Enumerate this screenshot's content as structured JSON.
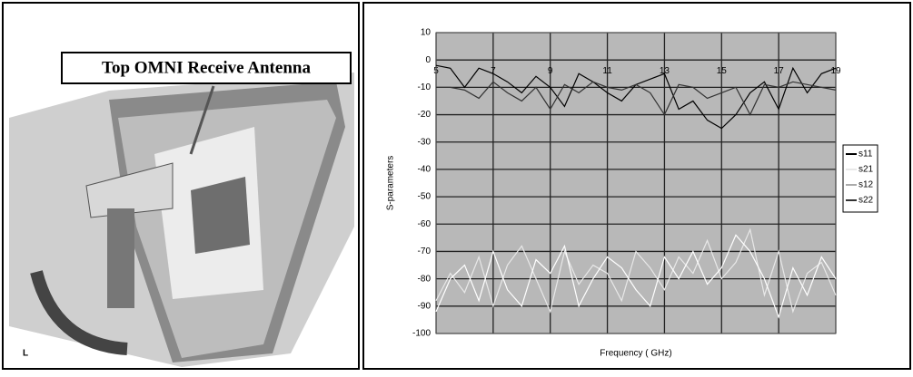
{
  "image_label": "Top OMNI Receive Antenna",
  "chart_data": {
    "type": "line",
    "ylabel": "S-parameters",
    "xlabel": "Frequency ( GHz)",
    "x": [
      5,
      5.5,
      6,
      6.5,
      7,
      7.5,
      8,
      8.5,
      9,
      9.5,
      10,
      10.5,
      11,
      11.5,
      12,
      12.5,
      13,
      13.5,
      14,
      14.5,
      15,
      15.5,
      16,
      16.5,
      17,
      17.5,
      18,
      18.5,
      19
    ],
    "xlim": [
      5,
      19
    ],
    "xticks": [
      5,
      7,
      9,
      11,
      13,
      15,
      17,
      19
    ],
    "ylim": [
      -100,
      10
    ],
    "yticks": [
      10,
      0,
      -10,
      -20,
      -30,
      -40,
      -50,
      -60,
      -70,
      -80,
      -90,
      -100
    ],
    "grid": true,
    "legend": "right",
    "series": [
      {
        "name": "s11",
        "color": "#000000",
        "values": [
          -2,
          -3,
          -10,
          -3,
          -5,
          -8,
          -12,
          -6,
          -10,
          -17,
          -5,
          -8,
          -12,
          -15,
          -9,
          -7,
          -5,
          -18,
          -15,
          -22,
          -25,
          -20,
          -12,
          -8,
          -18,
          -3,
          -12,
          -5,
          -3
        ]
      },
      {
        "name": "s21",
        "color": "#e8e8e8",
        "values": [
          -88,
          -78,
          -85,
          -72,
          -90,
          -75,
          -68,
          -80,
          -92,
          -70,
          -82,
          -75,
          -78,
          -88,
          -70,
          -76,
          -84,
          -72,
          -78,
          -66,
          -80,
          -74,
          -62,
          -86,
          -70,
          -92,
          -78,
          -74,
          -86
        ]
      },
      {
        "name": "s12",
        "color": "#ffffff",
        "values": [
          -92,
          -80,
          -75,
          -88,
          -70,
          -84,
          -90,
          -73,
          -78,
          -68,
          -90,
          -80,
          -72,
          -76,
          -84,
          -90,
          -72,
          -80,
          -70,
          -82,
          -76,
          -64,
          -70,
          -80,
          -94,
          -76,
          -86,
          -72,
          -80
        ]
      },
      {
        "name": "s22",
        "color": "#333333",
        "values": [
          -10,
          -10,
          -11,
          -14,
          -8,
          -12,
          -15,
          -10,
          -18,
          -9,
          -12,
          -8,
          -10,
          -11,
          -9,
          -12,
          -20,
          -9,
          -10,
          -14,
          -12,
          -10,
          -20,
          -9,
          -10,
          -8,
          -9,
          -10,
          -11
        ]
      }
    ]
  }
}
